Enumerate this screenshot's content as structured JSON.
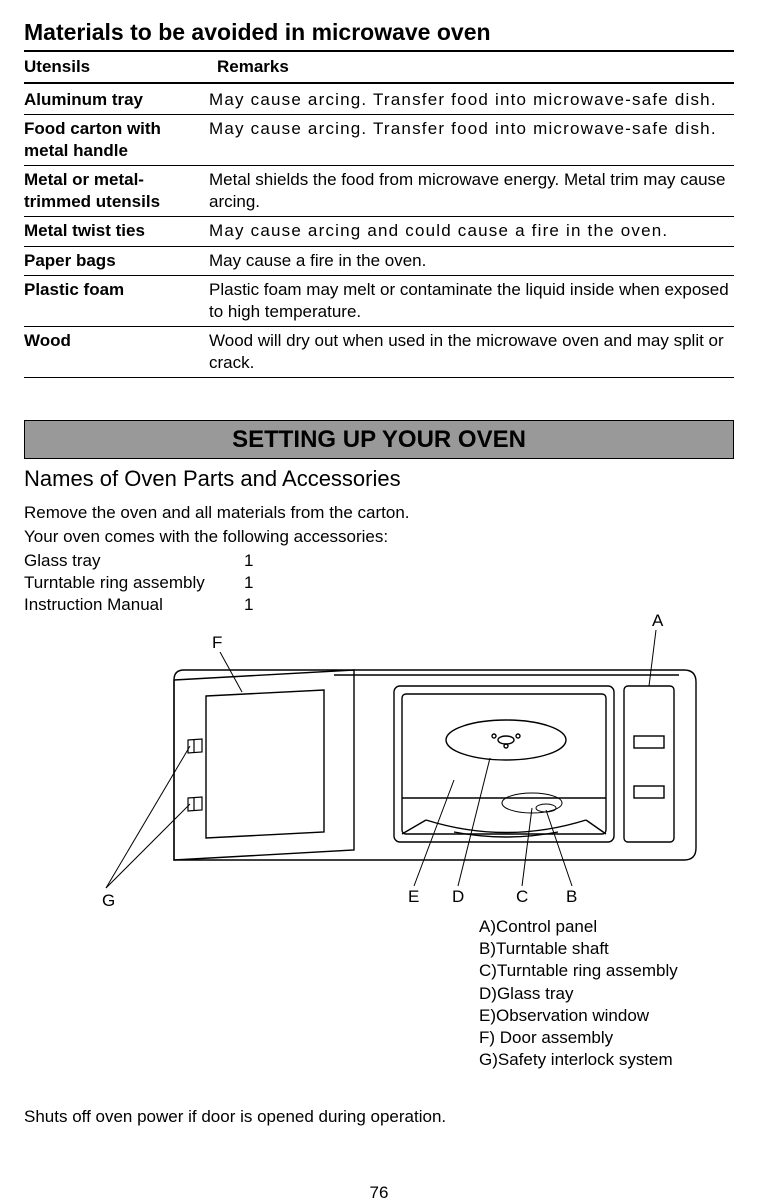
{
  "section1": {
    "title": "Materials to be avoided in microwave oven",
    "col1": "Utensils",
    "col2": "Remarks",
    "rows": [
      {
        "u": "Aluminum tray",
        "r": "May cause arcing. Transfer food into microwave-safe dish.",
        "wide": true
      },
      {
        "u": "Food carton with metal handle",
        "r": "May cause arcing. Transfer food into microwave-safe dish.",
        "wide": true
      },
      {
        "u": "Metal or metal-trimmed utensils",
        "r": "Metal shields the food from microwave energy. Metal trim may cause arcing.",
        "wide": false
      },
      {
        "u": "Metal twist ties",
        "r": "May cause arcing and could cause a fire in the oven.",
        "wide": true
      },
      {
        "u": "Paper bags",
        "r": "May cause a fire in the oven.",
        "wide": false
      },
      {
        "u": "Plastic foam",
        "r": "Plastic foam may melt or contaminate the liquid inside when exposed to high temperature.",
        "wide": false
      },
      {
        "u": "Wood",
        "r": "Wood  will dry out when used in the microwave oven and may split or crack.",
        "wide": false
      }
    ]
  },
  "banner": "SETTING UP YOUR OVEN",
  "subheading": "Names of Oven Parts and Accessories",
  "intro1": "Remove the oven and all materials from the carton.",
  "intro2": "Your oven comes with the following accessories:",
  "accessories": [
    {
      "name": "Glass tray",
      "qty": "1"
    },
    {
      "name": "Turntable ring assembly",
      "qty": "1"
    },
    {
      "name": "Instruction Manual",
      "qty": "1"
    }
  ],
  "labels": {
    "A": "A",
    "B": "B",
    "C": "C",
    "D": "D",
    "E": "E",
    "F": "F",
    "G": "G"
  },
  "legend": [
    "A)Control panel",
    "B)Turntable shaft",
    "C)Turntable ring assembly",
    "D)Glass tray",
    "E)Observation window",
    "F) Door assembly",
    "G)Safety interlock system"
  ],
  "shutoff": "Shuts off oven power if door is opened during operation.",
  "page_num": "76",
  "colors": {
    "banner_bg": "#999999",
    "line": "#000000"
  }
}
